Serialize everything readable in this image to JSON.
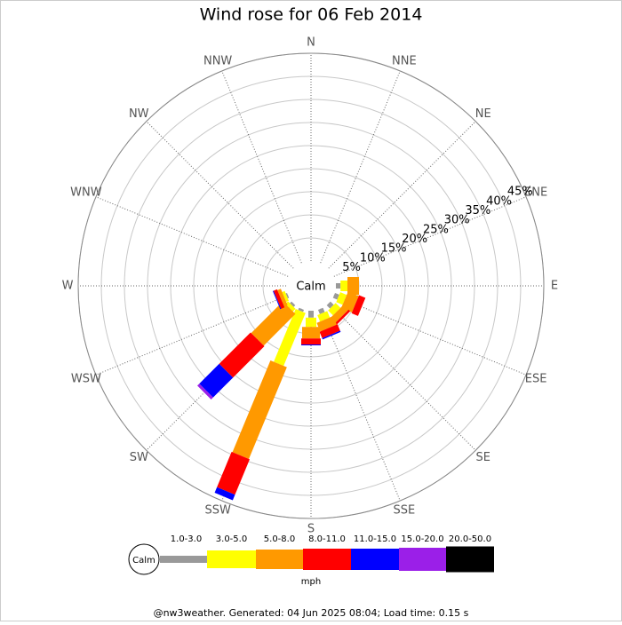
{
  "chart_data": {
    "type": "windrose",
    "title": "Wind rose for 06 Feb 2014",
    "categories": [
      "N",
      "NNE",
      "NE",
      "ENE",
      "E",
      "ESE",
      "SE",
      "SSE",
      "S",
      "SSW",
      "SW",
      "WSW",
      "W",
      "WNW",
      "NW",
      "NNW"
    ],
    "calm_label": "Calm",
    "rlim": [
      0,
      45
    ],
    "rticks": [
      {
        "value": 5,
        "label": "5%"
      },
      {
        "value": 10,
        "label": "10%"
      },
      {
        "value": 15,
        "label": "15%"
      },
      {
        "value": 20,
        "label": "20%"
      },
      {
        "value": 25,
        "label": "25%"
      },
      {
        "value": 30,
        "label": "30%"
      },
      {
        "value": 35,
        "label": "35%"
      },
      {
        "value": 40,
        "label": "40%"
      },
      {
        "value": 45,
        "label": "45%"
      }
    ],
    "grid": true,
    "legend_unit": "mph",
    "series": [
      {
        "name": "1.0-3.0",
        "color": "#999999",
        "values": [
          0,
          0,
          0,
          0,
          1,
          1,
          1,
          1,
          1.5,
          0.5,
          0.5,
          0.3,
          0,
          0,
          0,
          0
        ]
      },
      {
        "name": "3.0-5.0",
        "color": "#ffff00",
        "values": [
          0,
          0,
          0,
          0,
          1.5,
          1.5,
          1.5,
          1.5,
          2,
          12.4,
          0.8,
          0.6,
          0,
          0,
          0,
          0
        ]
      },
      {
        "name": "5.0-8.0",
        "color": "#ff9900",
        "values": [
          0,
          0,
          0,
          0,
          2.5,
          2.5,
          1.5,
          2,
          2.5,
          21.5,
          9.7,
          0.8,
          0,
          0,
          0,
          0
        ]
      },
      {
        "name": "8.0-11.0",
        "color": "#ff0000",
        "values": [
          0,
          0,
          0,
          0,
          0,
          1.5,
          0.5,
          1.5,
          1.3,
          8.3,
          9.6,
          0.8,
          0,
          0,
          0,
          0
        ]
      },
      {
        "name": "11.0-15.0",
        "color": "#0000ff",
        "values": [
          0,
          0,
          0,
          0,
          0,
          0,
          0,
          0.3,
          0.2,
          1.3,
          6.1,
          0.2,
          0,
          0,
          0,
          0
        ]
      },
      {
        "name": "15.0-20.0",
        "color": "#9b1fe8",
        "values": [
          0,
          0,
          0,
          0,
          0,
          0,
          0,
          0,
          0,
          0,
          0.6,
          0,
          0,
          0,
          0,
          0
        ]
      },
      {
        "name": "20.0-50.0",
        "color": "#000000",
        "values": [
          0,
          0,
          0,
          0,
          0,
          0,
          0,
          0,
          0,
          0,
          0,
          0,
          0,
          0,
          0,
          0
        ]
      }
    ]
  },
  "footer": "@nw3weather. Generated: 04 Jun 2025 08:04; Load time: 0.15 s"
}
